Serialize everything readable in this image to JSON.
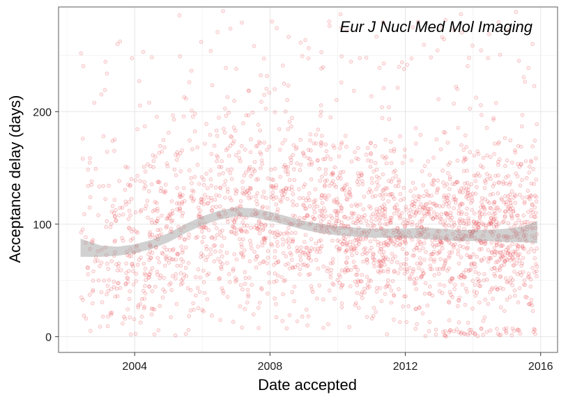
{
  "chart_data": {
    "type": "scatter",
    "title": "",
    "annotation": "Eur J Nucl Med Mol Imaging",
    "xlabel": "Date accepted",
    "ylabel": "Acceptance delay (days)",
    "xlim": [
      2001.75,
      2016.5
    ],
    "ylim": [
      -14,
      293
    ],
    "x_ticks": [
      2004,
      2008,
      2012,
      2016
    ],
    "x_tick_labels": [
      "2004",
      "2008",
      "2012",
      "2016"
    ],
    "y_ticks": [
      0,
      100,
      200
    ],
    "y_tick_labels": [
      "0",
      "100",
      "200"
    ],
    "grid": true,
    "legend": "none",
    "point_color": "#e8383d",
    "band_color": "#999999",
    "smooth_fit": {
      "x": [
        2002.4,
        2003.0,
        2003.5,
        2004.0,
        2004.5,
        2005.0,
        2005.5,
        2006.0,
        2006.5,
        2007.0,
        2007.5,
        2008.0,
        2008.5,
        2009.0,
        2009.5,
        2010.0,
        2010.5,
        2011.0,
        2011.5,
        2012.0,
        2012.5,
        2013.0,
        2013.5,
        2014.0,
        2014.5,
        2015.0,
        2015.5,
        2015.9
      ],
      "y": [
        79,
        76,
        76,
        78,
        82,
        88,
        96,
        103,
        108,
        111,
        110,
        107,
        103,
        99,
        96,
        94,
        93,
        92,
        92,
        92,
        92,
        91,
        90,
        90,
        90,
        90,
        91,
        93
      ],
      "lower": [
        71,
        71,
        72,
        74,
        78,
        84,
        92,
        99,
        104,
        107,
        106,
        103,
        99,
        95,
        92,
        90,
        89,
        88,
        88,
        88,
        87,
        86,
        85,
        85,
        85,
        84,
        84,
        83
      ],
      "upper": [
        87,
        81,
        80,
        82,
        86,
        92,
        100,
        107,
        112,
        115,
        114,
        111,
        107,
        103,
        100,
        98,
        97,
        96,
        96,
        96,
        97,
        96,
        95,
        95,
        95,
        96,
        98,
        103
      ]
    }
  }
}
